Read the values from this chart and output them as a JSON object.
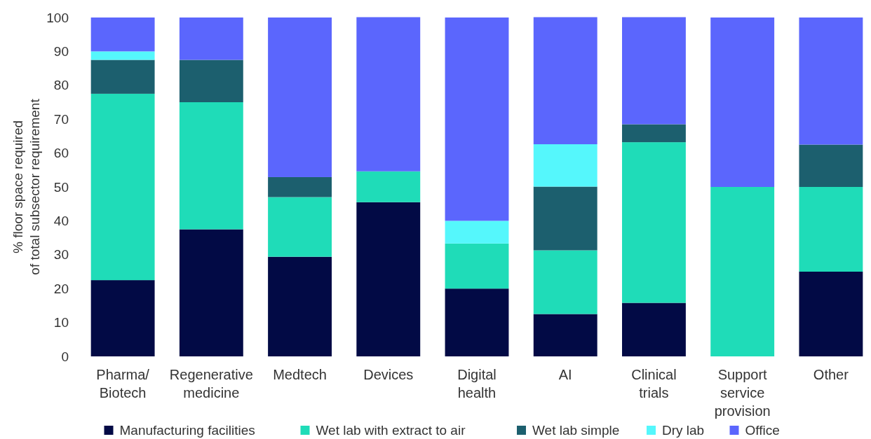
{
  "chart_data": {
    "type": "bar",
    "stacked": true,
    "ylabel": "% floor space required\nof total subsector requirement",
    "categories": [
      "Pharma/Biotech",
      "Regenerative medicine",
      "Medtech",
      "Devices",
      "Digital health",
      "AI",
      "Clinical trials",
      "Support service provision",
      "Other"
    ],
    "series": [
      {
        "name": "Manufacturing facilities",
        "color": "#020a45",
        "values": [
          22.5,
          37.5,
          29.4,
          45.5,
          20,
          12.5,
          15.8,
          0,
          25
        ]
      },
      {
        "name": "Wet lab with extract to air",
        "color": "#1fdcb8",
        "values": [
          55,
          37.5,
          17.6,
          9.1,
          13.3,
          18.8,
          47.4,
          50,
          25
        ]
      },
      {
        "name": "Wet lab simple",
        "color": "#1c5f6e",
        "values": [
          10,
          12.5,
          5.9,
          0,
          0,
          18.8,
          5.3,
          0,
          12.5
        ]
      },
      {
        "name": "Dry lab",
        "color": "#55f7fc",
        "values": [
          2.5,
          0,
          0,
          0,
          6.7,
          12.5,
          0,
          0,
          0
        ]
      },
      {
        "name": "Office",
        "color": "#5b66fd",
        "values": [
          10,
          12.5,
          47.1,
          45.5,
          60,
          37.5,
          31.6,
          50,
          37.5
        ]
      }
    ],
    "ylim": [
      0,
      100
    ],
    "yticks": [
      0,
      10,
      20,
      30,
      40,
      50,
      60,
      70,
      80,
      90,
      100
    ],
    "legend": "bottom"
  }
}
